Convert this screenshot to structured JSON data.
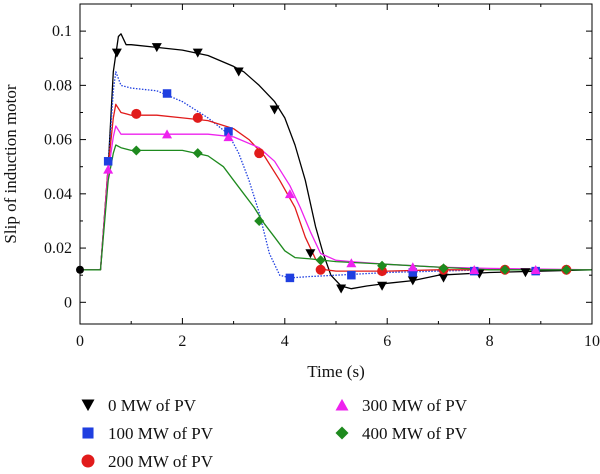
{
  "chart_data": {
    "type": "line",
    "title": "",
    "xlabel": "Time (s)",
    "ylabel": "Slip of induction motor",
    "xlim": [
      0,
      10
    ],
    "ylim": [
      -0.008,
      0.11
    ],
    "x_ticks": [
      0,
      2,
      4,
      6,
      8,
      10
    ],
    "x_tick_labels": [
      "0",
      "2",
      "4",
      "6",
      "8",
      "10"
    ],
    "y_ticks": [
      0,
      0.02,
      0.04,
      0.06,
      0.08,
      0.1
    ],
    "y_tick_labels": [
      "0",
      "0.02",
      "0.04",
      "0.06",
      "0.08",
      "0.1"
    ],
    "grid": false,
    "legend_placement": "bottom",
    "series": [
      {
        "name": "0 MW of PV",
        "color": "#000000",
        "marker": "triangle-down",
        "line_style": "solid",
        "x": [
          0,
          0.4,
          0.55,
          0.65,
          0.75,
          0.8,
          0.9,
          1.0,
          1.5,
          2.0,
          2.5,
          3.0,
          3.2,
          3.5,
          3.8,
          4.0,
          4.2,
          4.4,
          4.6,
          4.75,
          4.9,
          5.1,
          5.3,
          5.6,
          6.0,
          6.5,
          7.0,
          8.0,
          10.0
        ],
        "y": [
          0.012,
          0.012,
          0.05,
          0.085,
          0.098,
          0.099,
          0.095,
          0.095,
          0.094,
          0.093,
          0.091,
          0.087,
          0.085,
          0.08,
          0.074,
          0.068,
          0.058,
          0.045,
          0.028,
          0.018,
          0.01,
          0.006,
          0.005,
          0.006,
          0.007,
          0.008,
          0.01,
          0.011,
          0.012
        ],
        "marker_x": [
          0.72,
          1.5,
          2.3,
          3.1,
          3.8,
          4.5,
          5.1,
          5.9,
          6.5,
          7.1,
          7.8,
          8.7
        ],
        "marker_y": [
          0.092,
          0.094,
          0.092,
          0.085,
          0.071,
          0.018,
          0.005,
          0.006,
          0.008,
          0.009,
          0.0105,
          0.011
        ]
      },
      {
        "name": "100 MW of PV",
        "color": "#1f3fe0",
        "marker": "square",
        "line_style": "dotted",
        "x": [
          0,
          0.4,
          0.55,
          0.65,
          0.7,
          0.8,
          1.0,
          1.5,
          2.0,
          2.5,
          2.9,
          3.1,
          3.3,
          3.5,
          3.7,
          3.9,
          4.1,
          4.5,
          5.0,
          6.0,
          7.0,
          8.0,
          10.0
        ],
        "y": [
          0.012,
          0.012,
          0.05,
          0.078,
          0.085,
          0.08,
          0.079,
          0.078,
          0.074,
          0.068,
          0.062,
          0.055,
          0.045,
          0.033,
          0.018,
          0.01,
          0.009,
          0.0095,
          0.01,
          0.011,
          0.0115,
          0.012,
          0.012
        ],
        "marker_x": [
          0.55,
          1.7,
          2.9,
          4.1,
          5.3,
          6.5,
          7.7,
          8.9
        ],
        "marker_y": [
          0.052,
          0.077,
          0.063,
          0.009,
          0.01,
          0.011,
          0.0115,
          0.0115
        ]
      },
      {
        "name": "200 MW of PV",
        "color": "#e11b1b",
        "marker": "circle",
        "line_style": "solid",
        "x": [
          0,
          0.4,
          0.55,
          0.65,
          0.7,
          0.8,
          1.0,
          1.5,
          2.0,
          2.5,
          3.0,
          3.3,
          3.6,
          3.9,
          4.2,
          4.4,
          4.6,
          4.8,
          5.0,
          6.0,
          7.0,
          8.0,
          10.0
        ],
        "y": [
          0.012,
          0.012,
          0.05,
          0.068,
          0.073,
          0.07,
          0.069,
          0.069,
          0.068,
          0.067,
          0.064,
          0.06,
          0.054,
          0.045,
          0.035,
          0.024,
          0.016,
          0.012,
          0.0115,
          0.0115,
          0.012,
          0.012,
          0.012
        ],
        "marker_x": [
          1.1,
          2.3,
          3.5,
          4.7,
          5.9,
          7.1,
          8.3,
          9.5
        ],
        "marker_y": [
          0.0695,
          0.068,
          0.055,
          0.012,
          0.0115,
          0.012,
          0.012,
          0.012
        ]
      },
      {
        "name": "300 MW of PV",
        "color": "#ee22ee",
        "marker": "triangle-up",
        "line_style": "solid",
        "x": [
          0,
          0.4,
          0.55,
          0.65,
          0.7,
          0.8,
          1.0,
          1.5,
          2.0,
          2.5,
          3.0,
          3.5,
          3.8,
          4.1,
          4.3,
          4.5,
          4.7,
          5.0,
          5.3,
          6.0,
          7.0,
          8.0,
          10.0
        ],
        "y": [
          0.012,
          0.012,
          0.048,
          0.061,
          0.065,
          0.062,
          0.062,
          0.062,
          0.062,
          0.062,
          0.061,
          0.057,
          0.052,
          0.043,
          0.035,
          0.026,
          0.018,
          0.0155,
          0.015,
          0.014,
          0.013,
          0.0125,
          0.012
        ],
        "marker_x": [
          0.55,
          1.7,
          2.9,
          4.1,
          5.3,
          6.5,
          7.7,
          8.9
        ],
        "marker_y": [
          0.049,
          0.062,
          0.061,
          0.04,
          0.0145,
          0.013,
          0.012,
          0.012
        ]
      },
      {
        "name": "400 MW of PV",
        "color": "#1e8a1e",
        "marker": "diamond",
        "line_style": "solid",
        "x": [
          0,
          0.4,
          0.55,
          0.65,
          0.7,
          0.8,
          1.0,
          1.5,
          2.0,
          2.5,
          2.8,
          3.0,
          3.2,
          3.4,
          3.6,
          3.8,
          4.0,
          4.2,
          4.5,
          5.0,
          6.0,
          7.0,
          8.0,
          10.0
        ],
        "y": [
          0.012,
          0.012,
          0.045,
          0.055,
          0.058,
          0.057,
          0.056,
          0.056,
          0.056,
          0.054,
          0.05,
          0.045,
          0.04,
          0.035,
          0.029,
          0.024,
          0.019,
          0.0165,
          0.016,
          0.015,
          0.014,
          0.013,
          0.012,
          0.012
        ],
        "marker_x": [
          1.1,
          2.3,
          3.5,
          4.7,
          5.9,
          7.1,
          8.3,
          9.5
        ],
        "marker_y": [
          0.056,
          0.055,
          0.03,
          0.0155,
          0.0135,
          0.0125,
          0.012,
          0.012
        ]
      }
    ],
    "initial_marker": {
      "x": 0,
      "y": 0.012,
      "color": "#000000"
    }
  }
}
